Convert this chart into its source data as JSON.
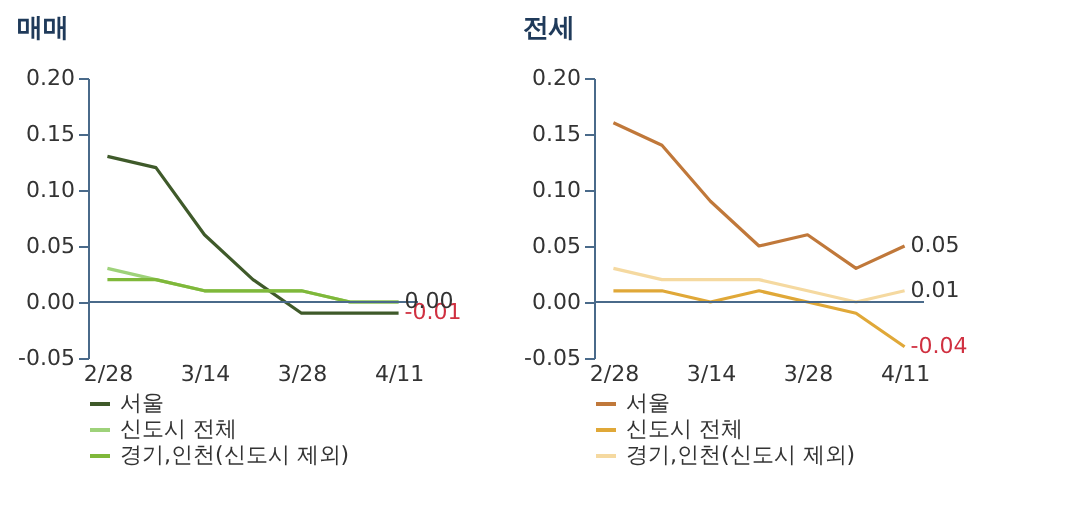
{
  "chart_data": [
    {
      "type": "line",
      "title": "매매",
      "categories": [
        "2/28",
        null,
        "3/14",
        null,
        "3/28",
        null,
        "4/11"
      ],
      "series": [
        {
          "name": "서울",
          "color": "#3f5a2a",
          "values": [
            0.13,
            0.12,
            0.06,
            0.02,
            -0.01,
            -0.01,
            -0.01
          ],
          "value_labels": [
            null,
            null,
            null,
            null,
            null,
            null,
            "-0.01"
          ]
        },
        {
          "name": "신도시 전체",
          "color": "#9ed27a",
          "values": [
            0.03,
            0.02,
            0.01,
            0.01,
            0.01,
            0.0,
            0.0
          ],
          "value_labels": [
            null,
            null,
            null,
            null,
            null,
            null,
            "0.00"
          ]
        },
        {
          "name": "경기,인천(신도시 제외)",
          "color": "#7fb83a",
          "values": [
            0.02,
            0.02,
            0.01,
            0.01,
            0.01,
            0.0,
            0.0
          ]
        }
      ],
      "ylim": [
        -0.05,
        0.2
      ],
      "yticks": [
        {
          "value": -0.05,
          "label": "-0.05"
        },
        {
          "value": 0,
          "label": "0.00"
        },
        {
          "value": 0.05,
          "label": "0.05"
        },
        {
          "value": 0.1,
          "label": "0.10"
        },
        {
          "value": 0.15,
          "label": "0.15"
        },
        {
          "value": 0.2,
          "label": "0.20"
        }
      ],
      "ref_lines": [
        {
          "axis": "y",
          "value": 0,
          "color": "#4a6a8a"
        }
      ],
      "legend": "bottom",
      "grid": false
    },
    {
      "type": "line",
      "title": "전세",
      "categories": [
        "2/28",
        null,
        "3/14",
        null,
        "3/28",
        null,
        "4/11"
      ],
      "series": [
        {
          "name": "서울",
          "color": "#c0783a",
          "values": [
            0.16,
            0.14,
            0.09,
            0.05,
            0.06,
            0.03,
            0.05
          ],
          "value_labels": [
            null,
            null,
            null,
            null,
            null,
            null,
            "0.05"
          ]
        },
        {
          "name": "신도시 전체",
          "color": "#e0a838",
          "values": [
            0.01,
            0.01,
            0.0,
            0.01,
            0.0,
            -0.01,
            -0.04
          ],
          "value_labels": [
            null,
            null,
            null,
            null,
            null,
            null,
            "-0.04"
          ]
        },
        {
          "name": "경기,인천(신도시 제외)",
          "color": "#f5d9a0",
          "values": [
            0.03,
            0.02,
            0.02,
            0.02,
            0.01,
            0.0,
            0.01
          ],
          "value_labels": [
            null,
            null,
            null,
            null,
            null,
            null,
            "0.01"
          ]
        }
      ],
      "ylim": [
        -0.05,
        0.2
      ],
      "yticks": [
        {
          "value": -0.05,
          "label": "-0.05"
        },
        {
          "value": 0,
          "label": "0.00"
        },
        {
          "value": 0.05,
          "label": "0.05"
        },
        {
          "value": 0.1,
          "label": "0.10"
        },
        {
          "value": 0.15,
          "label": "0.15"
        },
        {
          "value": 0.2,
          "label": "0.20"
        }
      ],
      "ref_lines": [
        {
          "axis": "y",
          "value": 0,
          "color": "#4a6a8a"
        }
      ],
      "legend": "bottom",
      "grid": false
    }
  ]
}
